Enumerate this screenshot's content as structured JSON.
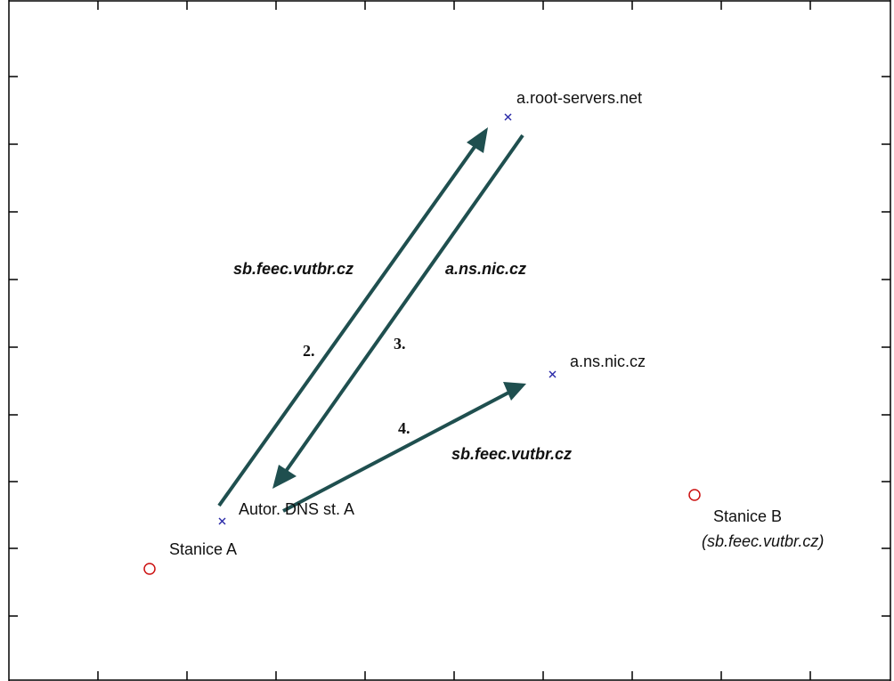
{
  "nodes": {
    "root_server": {
      "label": "a.root-servers.net",
      "marker": "cross"
    },
    "ns_nic": {
      "label": "a.ns.nic.cz",
      "marker": "cross"
    },
    "autor_dns": {
      "label": "Autor. DNS st. A",
      "marker": "cross"
    },
    "stanice_a": {
      "label": "Stanice A",
      "marker": "circle"
    },
    "stanice_b": {
      "label": "Stanice B",
      "sublabel": "(sb.feec.vutbr.cz)",
      "marker": "circle"
    }
  },
  "arrows": {
    "query_root": {
      "step": "2.",
      "label": "sb.feec.vutbr.cz"
    },
    "reply_root": {
      "step": "3.",
      "label": "a.ns.nic.cz"
    },
    "query_nic": {
      "step": "4.",
      "label": "sb.feec.vutbr.cz"
    }
  },
  "colors": {
    "arrow": "#1f4f4f",
    "cross": "#2a2aa8",
    "circle": "#cc1111",
    "axes": "#000000"
  }
}
